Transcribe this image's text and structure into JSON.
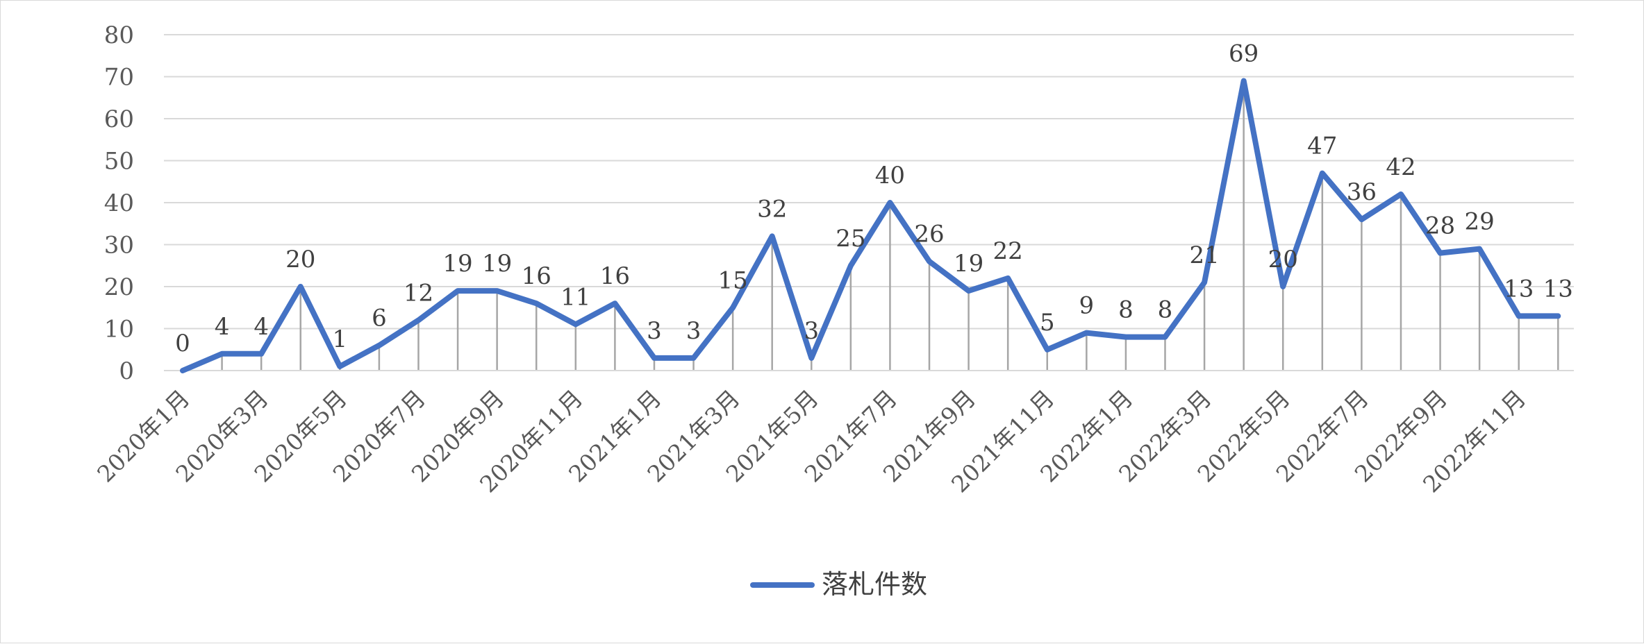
{
  "chart_data": {
    "type": "line",
    "title": "",
    "xlabel": "",
    "ylabel": "",
    "ylim": [
      0,
      80
    ],
    "yticks": [
      0,
      10,
      20,
      30,
      40,
      50,
      60,
      70,
      80
    ],
    "grid": true,
    "legend_position": "bottom",
    "x": [
      "2020年1月",
      "2020年2月",
      "2020年3月",
      "2020年4月",
      "2020年5月",
      "2020年6月",
      "2020年7月",
      "2020年8月",
      "2020年9月",
      "2020年10月",
      "2020年11月",
      "2020年12月",
      "2021年1月",
      "2021年2月",
      "2021年3月",
      "2021年4月",
      "2021年5月",
      "2021年6月",
      "2021年7月",
      "2021年8月",
      "2021年9月",
      "2021年10月",
      "2021年11月",
      "2021年12月",
      "2022年1月",
      "2022年2月",
      "2022年3月",
      "2022年4月",
      "2022年5月",
      "2022年6月",
      "2022年7月",
      "2022年8月",
      "2022年9月",
      "2022年10月",
      "2022年11月",
      "2022年12月"
    ],
    "x_tick_labels": [
      "2020年1月",
      "2020年3月",
      "2020年5月",
      "2020年7月",
      "2020年9月",
      "2020年11月",
      "2021年1月",
      "2021年3月",
      "2021年5月",
      "2021年7月",
      "2021年9月",
      "2021年11月",
      "2022年1月",
      "2022年3月",
      "2022年5月",
      "2022年7月",
      "2022年9月",
      "2022年11月"
    ],
    "series": [
      {
        "name": "落札件数",
        "color": "#4472c4",
        "values": [
          0,
          4,
          4,
          20,
          1,
          6,
          12,
          19,
          19,
          16,
          11,
          16,
          3,
          3,
          15,
          32,
          3,
          25,
          40,
          26,
          19,
          22,
          5,
          9,
          8,
          8,
          21,
          69,
          20,
          47,
          36,
          42,
          28,
          29,
          13,
          13
        ]
      }
    ]
  }
}
